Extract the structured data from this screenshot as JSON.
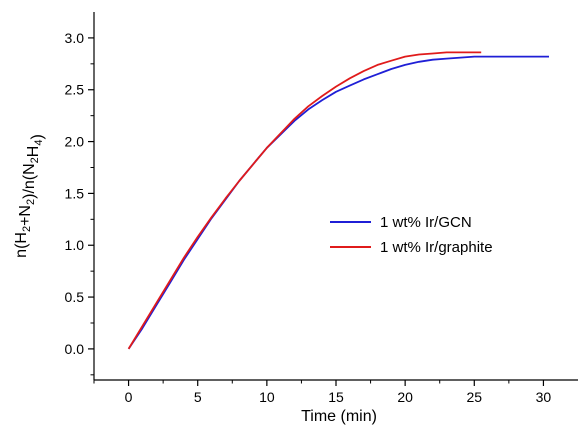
{
  "chart_data": {
    "type": "line",
    "title": "",
    "xlabel": "Time (min)",
    "ylabel_parts": [
      {
        "t": "n(H",
        "sub": false
      },
      {
        "t": "2",
        "sub": true
      },
      {
        "t": "+N",
        "sub": false
      },
      {
        "t": "2",
        "sub": true
      },
      {
        "t": ")/n(N",
        "sub": false
      },
      {
        "t": "2",
        "sub": true
      },
      {
        "t": "H",
        "sub": false
      },
      {
        "t": "4",
        "sub": true
      },
      {
        "t": ")",
        "sub": false
      }
    ],
    "xlim": [
      -2.5,
      32.5
    ],
    "ylim": [
      -0.3,
      3.25
    ],
    "xticks": [
      0,
      5,
      10,
      15,
      20,
      25,
      30
    ],
    "xtick_labels": [
      "0",
      "5",
      "10",
      "15",
      "20",
      "25",
      "30"
    ],
    "yticks": [
      0.0,
      0.5,
      1.0,
      1.5,
      2.0,
      2.5,
      3.0
    ],
    "ytick_labels": [
      "0.0",
      "0.5",
      "1.0",
      "1.5",
      "2.0",
      "2.5",
      "3.0"
    ],
    "legend_position": "center-right",
    "grid": false,
    "series": [
      {
        "name": "1 wt% Ir/GCN",
        "color": "#1f1fd6",
        "x": [
          0,
          1,
          2,
          3,
          4,
          5,
          6,
          7,
          8,
          9,
          10,
          11,
          12,
          13,
          14,
          15,
          16,
          17,
          18,
          19,
          20,
          21,
          22,
          23,
          24,
          25,
          26,
          27,
          28,
          29,
          30.4
        ],
        "y": [
          0.0,
          0.2,
          0.42,
          0.64,
          0.86,
          1.06,
          1.26,
          1.44,
          1.62,
          1.78,
          1.94,
          2.07,
          2.2,
          2.31,
          2.4,
          2.48,
          2.54,
          2.6,
          2.65,
          2.7,
          2.74,
          2.77,
          2.79,
          2.8,
          2.81,
          2.82,
          2.82,
          2.82,
          2.82,
          2.82,
          2.82
        ]
      },
      {
        "name": "1 wt% Ir/graphite",
        "color": "#e01b1b",
        "x": [
          0,
          1,
          2,
          3,
          4,
          5,
          6,
          7,
          8,
          9,
          10,
          11,
          12,
          13,
          14,
          15,
          16,
          17,
          18,
          19,
          20,
          21,
          22,
          23,
          24,
          25,
          25.5
        ],
        "y": [
          0.0,
          0.22,
          0.44,
          0.66,
          0.88,
          1.08,
          1.27,
          1.45,
          1.62,
          1.78,
          1.94,
          2.08,
          2.22,
          2.34,
          2.44,
          2.53,
          2.61,
          2.68,
          2.74,
          2.78,
          2.82,
          2.84,
          2.85,
          2.86,
          2.86,
          2.86,
          2.86
        ]
      }
    ]
  }
}
